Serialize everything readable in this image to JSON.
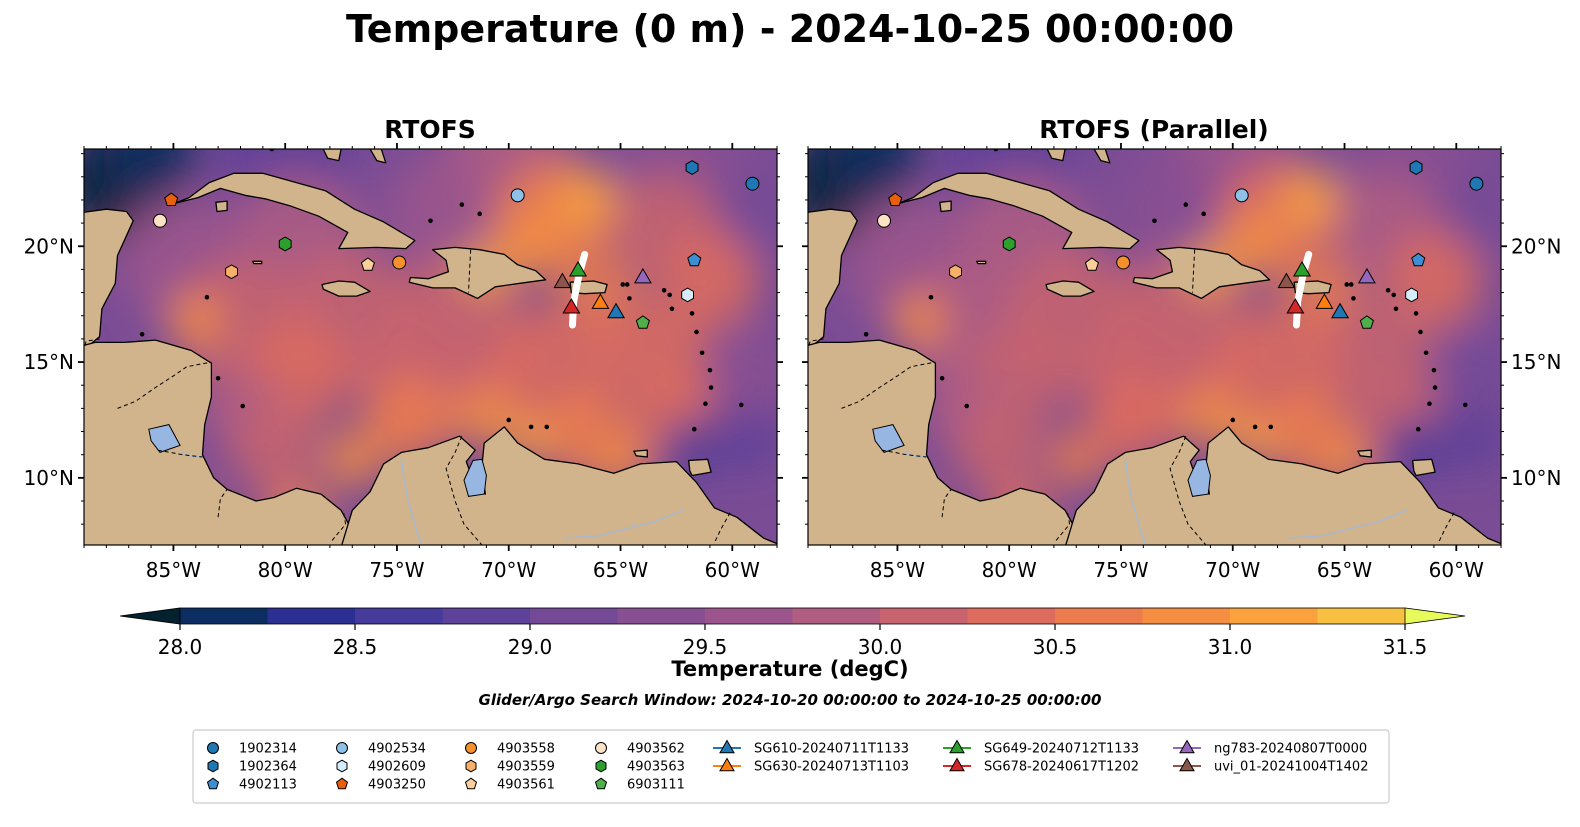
{
  "title": "Temperature (0 m) - 2024-10-25 00:00:00",
  "panels": [
    {
      "title": "RTOFS"
    },
    {
      "title": "RTOFS (Parallel)"
    }
  ],
  "map": {
    "lon_range": [
      -89,
      -58
    ],
    "lat_range": [
      7.1,
      24.2
    ],
    "lon_ticks": [
      "85°W",
      "80°W",
      "75°W",
      "70°W",
      "65°W",
      "60°W"
    ],
    "lat_ticks": [
      "10°N",
      "15°N",
      "20°N"
    ],
    "land_color": "#d2b48c",
    "lake_color": "#97b6e1",
    "river_color": "#a7b8d0"
  },
  "colorbar": {
    "label": "Temperature (degC)",
    "range": [
      28.0,
      31.5
    ],
    "step": 0.25,
    "tick_labels": [
      "28.0",
      "28.5",
      "29.0",
      "29.5",
      "30.0",
      "30.5",
      "31.0",
      "31.5"
    ],
    "extend": "both",
    "colors": [
      "#03212e",
      "#0c2d62",
      "#2b2f91",
      "#463a9a",
      "#5e4199",
      "#744a96",
      "#884f92",
      "#9c558c",
      "#b05d82",
      "#c8646f",
      "#de6c5e",
      "#ec7c4e",
      "#f68e41",
      "#fba23c",
      "#f8c041",
      "#f2dc4c",
      "#e8fa5b"
    ]
  },
  "subtitle": "Glider/Argo Search Window: 2024-10-20 00:00:00 to 2024-10-25 00:00:00",
  "floats": [
    {
      "id": "1902314",
      "marker": "circle",
      "color": "#1f77b4",
      "lon": -59.1,
      "lat": 22.7
    },
    {
      "id": "1902364",
      "marker": "hexagon",
      "color": "#1f77b4",
      "lon": -61.8,
      "lat": 23.4
    },
    {
      "id": "4902113",
      "marker": "pentagon",
      "color": "#3d8fd4",
      "lon": -61.7,
      "lat": 19.4
    },
    {
      "id": "4902534",
      "marker": "circle",
      "color": "#8ec1e8",
      "lon": -69.6,
      "lat": 22.2
    },
    {
      "id": "4902609",
      "marker": "hexagon",
      "color": "#d7ecfb",
      "lon": -62.0,
      "lat": 17.9
    },
    {
      "id": "4903250",
      "marker": "pentagon",
      "color": "#e8600e",
      "lon": -85.1,
      "lat": 22.0
    },
    {
      "id": "4903558",
      "marker": "circle",
      "color": "#f5902c",
      "lon": -74.9,
      "lat": 19.3
    },
    {
      "id": "4903559",
      "marker": "hexagon",
      "color": "#f6b06a",
      "lon": -82.4,
      "lat": 18.9
    },
    {
      "id": "4903561",
      "marker": "pentagon",
      "color": "#fbcf9c",
      "lon": -76.3,
      "lat": 19.2
    },
    {
      "id": "4903562",
      "marker": "circle",
      "color": "#fde3c6",
      "lon": -85.6,
      "lat": 21.1
    },
    {
      "id": "4903563",
      "marker": "hexagon",
      "color": "#2ca02c",
      "lon": -80.0,
      "lat": 20.1
    },
    {
      "id": "6903111",
      "marker": "pentagon",
      "color": "#4fb04a",
      "lon": -64.0,
      "lat": 16.7
    }
  ],
  "gliders": [
    {
      "id": "SG610-20240711T1133",
      "color": "#1f77b4",
      "lon": -65.2,
      "lat": 17.2
    },
    {
      "id": "SG630-20240713T1103",
      "color": "#ff7f0e",
      "lon": -65.9,
      "lat": 17.6
    },
    {
      "id": "SG649-20240712T1133",
      "color": "#2ca02c",
      "lon": -66.9,
      "lat": 19.0
    },
    {
      "id": "SG678-20240617T1202",
      "color": "#d62728",
      "lon": -67.2,
      "lat": 17.4
    },
    {
      "id": "ng783-20240807T0000",
      "color": "#9467bd",
      "lon": -64.0,
      "lat": 18.7
    },
    {
      "id": "uvi_01-20241004T1402",
      "color": "#8c564b",
      "lon": -67.6,
      "lat": 18.5
    }
  ]
}
